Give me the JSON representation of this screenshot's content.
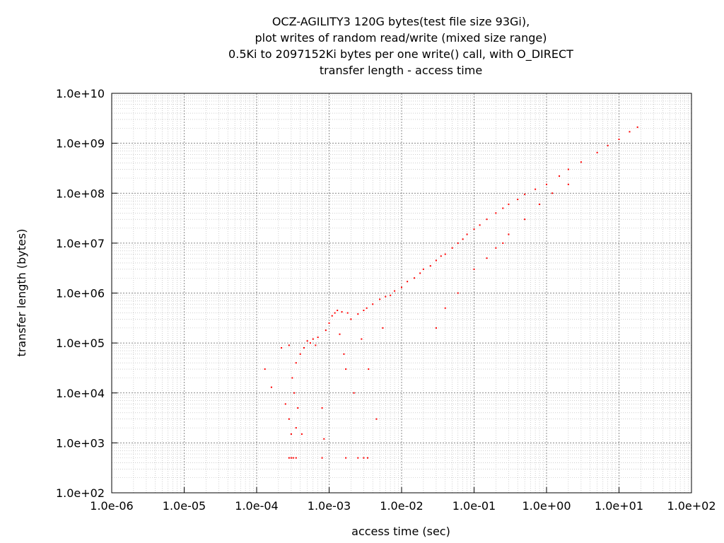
{
  "chart_data": {
    "type": "scatter",
    "title_lines": [
      "OCZ-AGILITY3 120G bytes(test file size 93Gi),",
      "plot writes of random read/write (mixed size range)",
      "0.5Ki to 2097152Ki bytes per one write() call, with O_DIRECT",
      "transfer length - access time"
    ],
    "xlabel": "access time (sec)",
    "ylabel": "transfer length (bytes)",
    "x_scale": "log",
    "y_scale": "log",
    "xlim": [
      1e-06,
      100
    ],
    "ylim": [
      100,
      10000000000.0
    ],
    "x_ticks": [
      {
        "value": 1e-06,
        "label": "1.0e-06"
      },
      {
        "value": 1e-05,
        "label": "1.0e-05"
      },
      {
        "value": 0.0001,
        "label": "1.0e-04"
      },
      {
        "value": 0.001,
        "label": "1.0e-03"
      },
      {
        "value": 0.01,
        "label": "1.0e-02"
      },
      {
        "value": 0.1,
        "label": "1.0e-01"
      },
      {
        "value": 1,
        "label": "1.0e+00"
      },
      {
        "value": 10,
        "label": "1.0e+01"
      },
      {
        "value": 100,
        "label": "1.0e+02"
      }
    ],
    "y_ticks": [
      {
        "value": 100,
        "label": "1.0e+02"
      },
      {
        "value": 1000,
        "label": "1.0e+03"
      },
      {
        "value": 10000,
        "label": "1.0e+04"
      },
      {
        "value": 100000,
        "label": "1.0e+05"
      },
      {
        "value": 1000000,
        "label": "1.0e+06"
      },
      {
        "value": 10000000,
        "label": "1.0e+07"
      },
      {
        "value": 100000000,
        "label": "1.0e+08"
      },
      {
        "value": 1000000000,
        "label": "1.0e+09"
      },
      {
        "value": 10000000000,
        "label": "1.0e+10"
      }
    ],
    "grid": true,
    "point_color": "#ff0000",
    "series": [
      {
        "points": [
          [
            0.00013,
            30000
          ],
          [
            0.00016,
            13000
          ],
          [
            0.00022,
            80000
          ],
          [
            0.00025,
            6000
          ],
          [
            0.00028,
            3000
          ],
          [
            0.00028,
            500
          ],
          [
            0.0003,
            1500
          ],
          [
            0.0003,
            500
          ],
          [
            0.00032,
            500
          ],
          [
            0.00035,
            500
          ],
          [
            0.00035,
            2000
          ],
          [
            0.00028,
            90000
          ],
          [
            0.00031,
            20000
          ],
          [
            0.00033,
            10000
          ],
          [
            0.00035,
            40000
          ],
          [
            0.00037,
            5000
          ],
          [
            0.0004,
            60000
          ],
          [
            0.00042,
            1500
          ],
          [
            0.00045,
            80000
          ],
          [
            0.0005,
            110000
          ],
          [
            0.00055,
            100000
          ],
          [
            0.0006,
            120000
          ],
          [
            0.00065,
            90000
          ],
          [
            0.0007,
            130000
          ],
          [
            0.0008,
            5000
          ],
          [
            0.00085,
            1200
          ],
          [
            0.0009,
            180000
          ],
          [
            0.001,
            250000
          ],
          [
            0.0011,
            350000
          ],
          [
            0.0012,
            400000
          ],
          [
            0.0013,
            450000
          ],
          [
            0.0014,
            150000
          ],
          [
            0.0015,
            420000
          ],
          [
            0.0016,
            60000
          ],
          [
            0.0017,
            30000
          ],
          [
            0.0018,
            400000
          ],
          [
            0.002,
            300000
          ],
          [
            0.0022,
            10000
          ],
          [
            0.0025,
            380000
          ],
          [
            0.0028,
            120000
          ],
          [
            0.003,
            450000
          ],
          [
            0.0033,
            500000
          ],
          [
            0.0035,
            30000
          ],
          [
            0.004,
            600000
          ],
          [
            0.0045,
            3000
          ],
          [
            0.005,
            750000
          ],
          [
            0.0055,
            200000
          ],
          [
            0.006,
            850000
          ],
          [
            0.007,
            900000
          ],
          [
            0.0008,
            500
          ],
          [
            0.0017,
            500
          ],
          [
            0.0025,
            500
          ],
          [
            0.003,
            500
          ],
          [
            0.0034,
            500
          ],
          [
            0.008,
            1100000
          ],
          [
            0.01,
            1300000
          ],
          [
            0.012,
            1700000
          ],
          [
            0.015,
            2000000
          ],
          [
            0.018,
            2500000
          ],
          [
            0.02,
            3000000
          ],
          [
            0.025,
            3500000
          ],
          [
            0.03,
            4500000
          ],
          [
            0.035,
            5500000
          ],
          [
            0.04,
            6000000
          ],
          [
            0.05,
            8000000
          ],
          [
            0.06,
            10000000
          ],
          [
            0.07,
            12000000
          ],
          [
            0.08,
            15000000
          ],
          [
            0.1,
            19000000
          ],
          [
            0.12,
            23000000
          ],
          [
            0.15,
            30000000
          ],
          [
            0.2,
            40000000
          ],
          [
            0.25,
            50000000
          ],
          [
            0.3,
            60000000
          ],
          [
            0.4,
            75000000
          ],
          [
            0.5,
            95000000
          ],
          [
            0.7,
            120000000
          ],
          [
            1.0,
            150000000
          ],
          [
            1.5,
            220000000
          ],
          [
            2.0,
            300000000
          ],
          [
            3.0,
            420000000
          ],
          [
            5.0,
            650000000
          ],
          [
            7.0,
            900000000
          ],
          [
            10.0,
            1200000000
          ],
          [
            14.0,
            1700000000
          ],
          [
            18.0,
            2100000000
          ],
          [
            0.04,
            500000
          ],
          [
            0.03,
            200000
          ],
          [
            0.06,
            1000000
          ],
          [
            0.1,
            3000000
          ],
          [
            0.15,
            5000000
          ],
          [
            0.2,
            8000000
          ],
          [
            0.25,
            10000000
          ],
          [
            0.3,
            15000000
          ],
          [
            0.5,
            30000000
          ],
          [
            0.8,
            60000000
          ],
          [
            1.2,
            100000000
          ],
          [
            2.0,
            150000000
          ]
        ]
      }
    ]
  }
}
